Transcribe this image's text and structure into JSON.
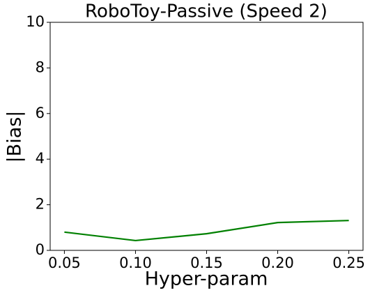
{
  "chart_data": {
    "type": "line",
    "title": "RoboToy-Passive (Speed 2)",
    "xlabel": "Hyper-param",
    "ylabel": "|Bias|",
    "x": [
      0.05,
      0.1,
      0.15,
      0.2,
      0.25
    ],
    "series": [
      {
        "color": "#008000",
        "values": [
          0.8,
          0.43,
          0.73,
          1.22,
          1.31
        ]
      }
    ],
    "xlim": [
      0.04,
      0.26
    ],
    "xticks": [
      0.05,
      {
        "value": 0.1,
        "label": "0.10"
      },
      0.15,
      {
        "value": 0.2,
        "label": "0.20"
      },
      0.25
    ],
    "ylim": [
      0,
      10
    ],
    "yticks": [
      0,
      2,
      4,
      6,
      8,
      10
    ],
    "grid": false
  }
}
